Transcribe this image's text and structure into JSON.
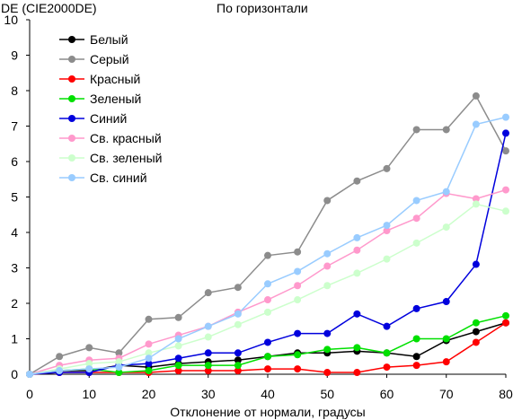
{
  "chart_data": {
    "type": "line",
    "title": "По горизонтали",
    "ylabel": "DE (CIE2000DE)",
    "xlabel": "Отклонение от нормали, градусы",
    "xlim": [
      0,
      80
    ],
    "ylim": [
      0,
      10
    ],
    "x_ticks": [
      0,
      10,
      20,
      30,
      40,
      50,
      60,
      70,
      80
    ],
    "y_ticks": [
      0,
      1,
      2,
      3,
      4,
      5,
      6,
      7,
      8,
      9,
      10
    ],
    "grid": false,
    "legend_position": "top-left",
    "x": [
      0,
      5,
      10,
      15,
      20,
      25,
      30,
      35,
      40,
      45,
      50,
      55,
      60,
      65,
      70,
      75,
      80
    ],
    "series": [
      {
        "name": "Белый",
        "color": "#000000",
        "values": [
          0,
          0.1,
          0.1,
          0.25,
          0.2,
          0.3,
          0.35,
          0.4,
          0.5,
          0.6,
          0.6,
          0.65,
          0.6,
          0.5,
          0.95,
          1.2,
          1.45
        ]
      },
      {
        "name": "Серый",
        "color": "#8c8c8c",
        "values": [
          0,
          0.5,
          0.75,
          0.6,
          1.55,
          1.6,
          2.3,
          2.45,
          3.35,
          3.45,
          4.9,
          5.45,
          5.8,
          6.9,
          6.9,
          7.85,
          6.3
        ]
      },
      {
        "name": "Красный",
        "color": "#ff0000",
        "values": [
          0,
          0.05,
          0.05,
          0.05,
          0.05,
          0.1,
          0.1,
          0.1,
          0.15,
          0.15,
          0.05,
          0.05,
          0.2,
          0.25,
          0.35,
          0.9,
          1.45
        ]
      },
      {
        "name": "Зеленый",
        "color": "#00e000",
        "values": [
          0,
          0.1,
          0.15,
          0.05,
          0.1,
          0.25,
          0.25,
          0.25,
          0.5,
          0.55,
          0.7,
          0.75,
          0.6,
          1.0,
          1.0,
          1.45,
          1.65
        ]
      },
      {
        "name": "Синий",
        "color": "#0000dd",
        "values": [
          0,
          0.05,
          0.05,
          0.25,
          0.3,
          0.45,
          0.6,
          0.6,
          0.9,
          1.15,
          1.15,
          1.7,
          1.35,
          1.85,
          2.05,
          3.1,
          6.8
        ]
      },
      {
        "name": "Св. красный",
        "color": "#ff99cc",
        "values": [
          0,
          0.25,
          0.4,
          0.45,
          0.85,
          1.1,
          1.35,
          1.75,
          2.1,
          2.5,
          3.05,
          3.5,
          4.05,
          4.4,
          5.1,
          4.95,
          5.2
        ]
      },
      {
        "name": "Св. зеленый",
        "color": "#ccffcc",
        "values": [
          0,
          0.15,
          0.3,
          0.35,
          0.6,
          0.8,
          1.05,
          1.4,
          1.75,
          2.1,
          2.5,
          2.85,
          3.25,
          3.7,
          4.15,
          4.8,
          4.6
        ]
      },
      {
        "name": "Св. синий",
        "color": "#99ccff",
        "values": [
          0,
          0.1,
          0.15,
          0.2,
          0.45,
          1.0,
          1.35,
          1.7,
          2.55,
          2.9,
          3.4,
          3.85,
          4.2,
          4.9,
          5.15,
          7.05,
          7.25
        ]
      }
    ]
  }
}
